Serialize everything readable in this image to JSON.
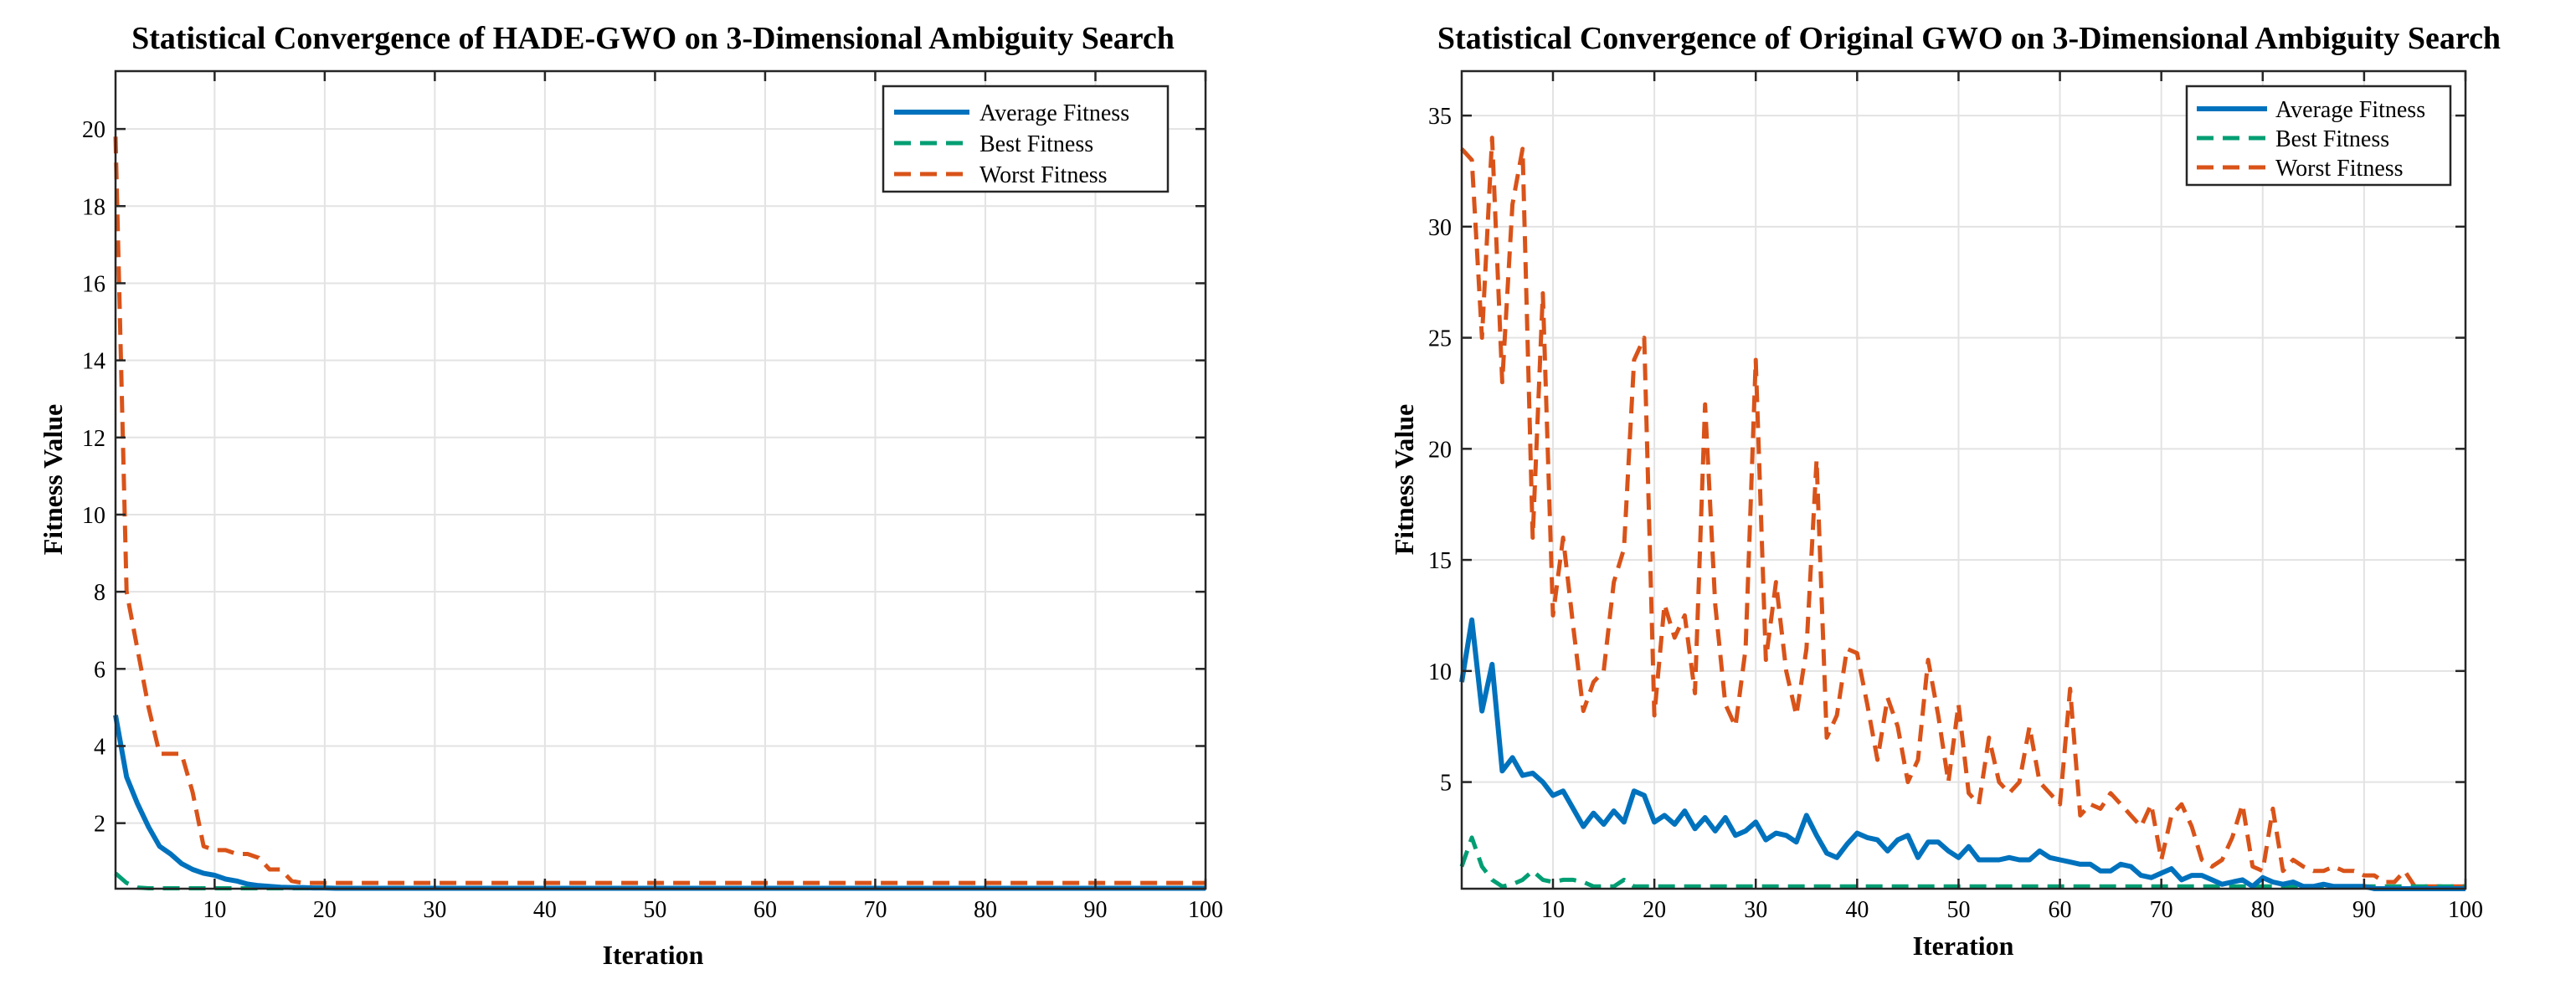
{
  "chart_data": [
    {
      "type": "line",
      "title": "Statistical Convergence of HADE-GWO on 3-Dimensional Ambiguity Search",
      "xlabel": "Iteration",
      "ylabel": "Fitness Value",
      "xlim": [
        1,
        100
      ],
      "ylim": [
        0.3,
        21.5
      ],
      "xticks": [
        10,
        20,
        30,
        40,
        50,
        60,
        70,
        80,
        90,
        100
      ],
      "yticks": [
        2,
        4,
        6,
        8,
        10,
        12,
        14,
        16,
        18,
        20
      ],
      "grid": true,
      "legend_position": "top-right",
      "x_start": 1,
      "series": [
        {
          "name": "Average Fitness",
          "color": "#0072BD",
          "style": "solid",
          "values": [
            4.8,
            3.2,
            2.5,
            1.9,
            1.4,
            1.2,
            0.95,
            0.8,
            0.7,
            0.65,
            0.55,
            0.5,
            0.42,
            0.38,
            0.36,
            0.34,
            0.33,
            0.33,
            0.32,
            0.32,
            0.31,
            0.31,
            0.31,
            0.31,
            0.31,
            0.31,
            0.31,
            0.31,
            0.31,
            0.31,
            0.31,
            0.31,
            0.31,
            0.31,
            0.31,
            0.31,
            0.31,
            0.31,
            0.31,
            0.31,
            0.31,
            0.31,
            0.31,
            0.31,
            0.31,
            0.31,
            0.31,
            0.31,
            0.31,
            0.31,
            0.31,
            0.31,
            0.31,
            0.31,
            0.31,
            0.31,
            0.31,
            0.31,
            0.31,
            0.31,
            0.31,
            0.31,
            0.31,
            0.31,
            0.31,
            0.31,
            0.31,
            0.31,
            0.31,
            0.31,
            0.31,
            0.31,
            0.31,
            0.31,
            0.31,
            0.31,
            0.31,
            0.31,
            0.31,
            0.31,
            0.31,
            0.31,
            0.31,
            0.31,
            0.31,
            0.31,
            0.31,
            0.31,
            0.31,
            0.31,
            0.31,
            0.31,
            0.31,
            0.31,
            0.31,
            0.31,
            0.31,
            0.31,
            0.31,
            0.31
          ]
        },
        {
          "name": "Best Fitness",
          "color": "#009E73",
          "style": "dashed",
          "values": [
            0.7,
            0.45,
            0.33,
            0.31,
            0.31,
            0.31,
            0.31,
            0.31,
            0.31,
            0.31,
            0.31,
            0.31,
            0.31,
            0.31,
            0.31,
            0.31,
            0.31,
            0.31,
            0.31,
            0.31,
            0.31,
            0.31,
            0.31,
            0.31,
            0.31,
            0.31,
            0.31,
            0.31,
            0.31,
            0.31,
            0.31,
            0.31,
            0.31,
            0.31,
            0.31,
            0.31,
            0.31,
            0.31,
            0.31,
            0.31,
            0.31,
            0.31,
            0.31,
            0.31,
            0.31,
            0.31,
            0.31,
            0.31,
            0.31,
            0.31,
            0.31,
            0.31,
            0.31,
            0.31,
            0.31,
            0.31,
            0.31,
            0.31,
            0.31,
            0.31,
            0.31,
            0.31,
            0.31,
            0.31,
            0.31,
            0.31,
            0.31,
            0.31,
            0.31,
            0.31,
            0.31,
            0.31,
            0.31,
            0.31,
            0.31,
            0.31,
            0.31,
            0.31,
            0.31,
            0.31,
            0.31,
            0.31,
            0.31,
            0.31,
            0.31,
            0.31,
            0.31,
            0.31,
            0.31,
            0.31,
            0.31,
            0.31,
            0.31,
            0.31,
            0.31,
            0.31,
            0.31,
            0.31,
            0.31,
            0.31
          ]
        },
        {
          "name": "Worst Fitness",
          "color": "#D95319",
          "style": "dashed",
          "values": [
            19.8,
            8.0,
            6.5,
            5.0,
            3.8,
            3.8,
            3.8,
            2.8,
            1.4,
            1.3,
            1.3,
            1.2,
            1.2,
            1.1,
            0.8,
            0.8,
            0.5,
            0.45,
            0.45,
            0.45,
            0.45,
            0.45,
            0.45,
            0.45,
            0.45,
            0.45,
            0.45,
            0.45,
            0.45,
            0.45,
            0.45,
            0.45,
            0.45,
            0.45,
            0.45,
            0.45,
            0.45,
            0.45,
            0.45,
            0.45,
            0.45,
            0.45,
            0.45,
            0.45,
            0.45,
            0.45,
            0.45,
            0.45,
            0.45,
            0.45,
            0.45,
            0.45,
            0.45,
            0.45,
            0.45,
            0.45,
            0.45,
            0.45,
            0.45,
            0.45,
            0.45,
            0.45,
            0.45,
            0.45,
            0.45,
            0.45,
            0.45,
            0.45,
            0.45,
            0.45,
            0.45,
            0.45,
            0.45,
            0.45,
            0.45,
            0.45,
            0.45,
            0.45,
            0.45,
            0.45,
            0.45,
            0.45,
            0.45,
            0.45,
            0.45,
            0.45,
            0.45,
            0.45,
            0.45,
            0.45,
            0.45,
            0.45,
            0.45,
            0.45,
            0.45,
            0.45,
            0.45,
            0.45,
            0.45,
            0.45
          ]
        }
      ]
    },
    {
      "type": "line",
      "title": "Statistical Convergence of Original GWO on 3-Dimensional Ambiguity Search",
      "xlabel": "Iteration",
      "ylabel": "Fitness Value",
      "xlim": [
        1,
        100
      ],
      "ylim": [
        0.2,
        37
      ],
      "xticks": [
        10,
        20,
        30,
        40,
        50,
        60,
        70,
        80,
        90,
        100
      ],
      "yticks": [
        5,
        10,
        15,
        20,
        25,
        30,
        35
      ],
      "grid": true,
      "legend_position": "top-right",
      "x_start": 1,
      "series": [
        {
          "name": "Average Fitness",
          "color": "#0072BD",
          "style": "solid",
          "values": [
            9.5,
            12.3,
            8.2,
            10.3,
            5.5,
            6.1,
            5.3,
            5.4,
            5.0,
            4.4,
            4.6,
            3.8,
            3.0,
            3.6,
            3.1,
            3.7,
            3.2,
            4.6,
            4.4,
            3.2,
            3.5,
            3.1,
            3.7,
            2.9,
            3.4,
            2.8,
            3.4,
            2.6,
            2.8,
            3.2,
            2.4,
            2.7,
            2.6,
            2.3,
            3.5,
            2.6,
            1.8,
            1.6,
            2.2,
            2.7,
            2.5,
            2.4,
            1.9,
            2.4,
            2.6,
            1.6,
            2.3,
            2.3,
            1.9,
            1.6,
            2.1,
            1.5,
            1.5,
            1.5,
            1.6,
            1.5,
            1.5,
            1.9,
            1.6,
            1.5,
            1.4,
            1.3,
            1.3,
            1.0,
            1.0,
            1.3,
            1.2,
            0.8,
            0.7,
            0.9,
            1.1,
            0.6,
            0.8,
            0.8,
            0.6,
            0.4,
            0.5,
            0.6,
            0.3,
            0.7,
            0.5,
            0.4,
            0.5,
            0.3,
            0.3,
            0.4,
            0.3,
            0.3,
            0.3,
            0.3,
            0.2,
            0.2,
            0.2,
            0.2,
            0.2,
            0.2,
            0.2,
            0.2,
            0.2,
            0.2
          ]
        },
        {
          "name": "Best Fitness",
          "color": "#009E73",
          "style": "dashed",
          "values": [
            1.2,
            2.5,
            1.2,
            0.6,
            0.3,
            0.4,
            0.6,
            1.0,
            0.6,
            0.5,
            0.6,
            0.6,
            0.5,
            0.3,
            0.3,
            0.3,
            0.6,
            0.3,
            0.3,
            0.3,
            0.3,
            0.3,
            0.3,
            0.3,
            0.3,
            0.3,
            0.3,
            0.3,
            0.3,
            0.3,
            0.3,
            0.3,
            0.3,
            0.3,
            0.3,
            0.3,
            0.3,
            0.3,
            0.3,
            0.3,
            0.3,
            0.3,
            0.3,
            0.3,
            0.3,
            0.3,
            0.3,
            0.3,
            0.3,
            0.3,
            0.3,
            0.3,
            0.3,
            0.3,
            0.3,
            0.3,
            0.3,
            0.3,
            0.3,
            0.3,
            0.3,
            0.3,
            0.3,
            0.3,
            0.3,
            0.3,
            0.3,
            0.3,
            0.3,
            0.3,
            0.3,
            0.3,
            0.3,
            0.3,
            0.3,
            0.3,
            0.3,
            0.3,
            0.3,
            0.3,
            0.3,
            0.3,
            0.3,
            0.3,
            0.3,
            0.3,
            0.3,
            0.3,
            0.3,
            0.3,
            0.3,
            0.3,
            0.3,
            0.3,
            0.3,
            0.3,
            0.3,
            0.3,
            0.3,
            0.3
          ]
        },
        {
          "name": "Worst Fitness",
          "color": "#D95319",
          "style": "dashed",
          "values": [
            33.5,
            33.0,
            25.0,
            34.0,
            23.0,
            31.0,
            33.5,
            16.0,
            27.0,
            12.5,
            16.0,
            12.0,
            8.2,
            9.5,
            10.0,
            14.0,
            15.5,
            24.0,
            25.0,
            8.0,
            13.0,
            11.5,
            12.5,
            9.0,
            22.0,
            13.0,
            8.5,
            7.5,
            11.0,
            24.0,
            10.5,
            14.0,
            10.0,
            8.0,
            11.0,
            19.5,
            7.0,
            8.0,
            11.0,
            10.8,
            8.5,
            6.0,
            8.8,
            7.5,
            5.0,
            6.0,
            10.5,
            8.0,
            5.0,
            8.5,
            4.5,
            4.0,
            7.0,
            5.0,
            4.5,
            5.0,
            7.5,
            5.0,
            4.5,
            4.0,
            9.2,
            3.5,
            4.0,
            3.8,
            4.5,
            4.0,
            3.5,
            3.0,
            4.0,
            1.5,
            3.5,
            4.0,
            3.0,
            1.5,
            1.2,
            1.5,
            2.5,
            4.0,
            1.2,
            1.0,
            3.8,
            1.0,
            1.5,
            1.2,
            1.0,
            1.0,
            1.2,
            1.0,
            1.0,
            0.8,
            0.8,
            0.5,
            0.5,
            1.0,
            0.3,
            0.3,
            0.3,
            0.3,
            0.3,
            0.3
          ]
        }
      ]
    }
  ]
}
